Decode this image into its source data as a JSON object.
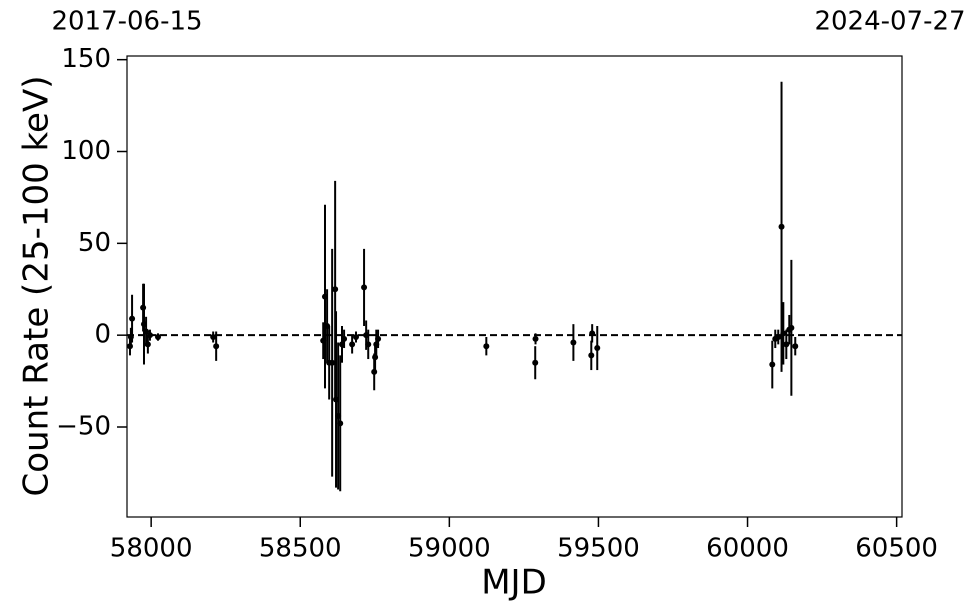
{
  "chart_data": {
    "type": "errorbar",
    "xlabel": "MJD",
    "ylabel": "Count Rate (25-100 keV)",
    "x2ticks": [
      {
        "value": 57919,
        "label": "2017-06-15"
      },
      {
        "value": 60518,
        "label": "2024-07-27"
      }
    ],
    "xlim": [
      57919,
      60518
    ],
    "ylim": [
      -99,
      152
    ],
    "xticks": [
      58000,
      58500,
      59000,
      59500,
      60000,
      60500
    ],
    "yticks": [
      {
        "value": -50,
        "label": "−50"
      },
      0,
      50,
      100,
      150
    ],
    "reference_line": 0,
    "color": "#000000",
    "x": [
      57929,
      57932,
      57936,
      57973,
      57976,
      57983,
      57989,
      57996,
      58023,
      58208,
      58218,
      58577,
      58583,
      58590,
      58597,
      58607,
      58617,
      58620,
      58627,
      58634,
      58640,
      58647,
      58674,
      58687,
      58714,
      58721,
      58728,
      58748,
      58751,
      58755,
      58761,
      59124,
      59288,
      59289,
      59416,
      59476,
      59479,
      59496,
      60083,
      60093,
      60103,
      60114,
      60120,
      60130,
      60140,
      60147,
      60160
    ],
    "values": [
      -6,
      -1,
      9,
      15,
      6,
      2,
      -5,
      0,
      -1,
      -1,
      -6,
      -3,
      21,
      5,
      -15,
      -15,
      25,
      -35,
      -44,
      -48,
      -5,
      -2,
      -5,
      -1,
      26,
      0,
      -5,
      -20,
      -12,
      -5,
      -2,
      -6,
      -15,
      -2,
      -4,
      -11,
      1,
      -7,
      -16,
      -2,
      -1,
      59,
      1,
      -5,
      3,
      4,
      -6
    ],
    "errors": [
      5,
      5,
      13,
      13,
      22,
      8,
      5,
      3,
      2,
      3,
      8,
      10,
      50,
      20,
      20,
      62,
      59,
      48,
      40,
      37,
      10,
      5,
      5,
      3,
      21,
      8,
      8,
      10,
      8,
      8,
      5,
      5,
      9,
      3,
      10,
      8,
      5,
      12,
      13,
      5,
      4,
      79,
      17,
      8,
      8,
      37,
      5
    ]
  }
}
